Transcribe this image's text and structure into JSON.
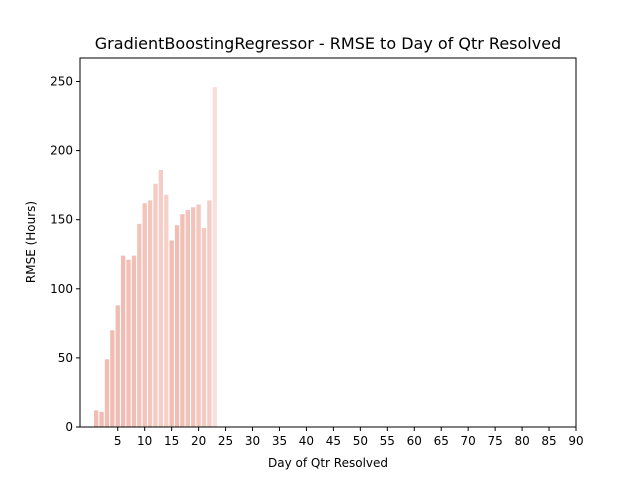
{
  "chart_data": {
    "type": "bar",
    "title": "GradientBoostingRegressor - RMSE to Day of Qtr Resolved",
    "xlabel": "Day of Qtr Resolved",
    "ylabel": "RMSE (Hours)",
    "xlim": [
      -2,
      90
    ],
    "ylim": [
      0,
      267
    ],
    "xticks": [
      5,
      10,
      15,
      20,
      25,
      30,
      35,
      40,
      45,
      50,
      55,
      60,
      65,
      70,
      75,
      80,
      85,
      90
    ],
    "yticks": [
      0,
      50,
      100,
      150,
      200,
      250
    ],
    "grid": false,
    "bar_color": "#f0b8ae",
    "x": [
      1,
      2,
      3,
      4,
      5,
      6,
      7,
      8,
      9,
      10,
      11,
      12,
      13,
      14,
      15,
      16,
      17,
      18,
      19,
      20,
      21,
      22,
      23
    ],
    "values": [
      12,
      11,
      49,
      70,
      88,
      124,
      121,
      124,
      147,
      162,
      164,
      176,
      186,
      168,
      135,
      146,
      154,
      157,
      159,
      161,
      144,
      164,
      246
    ],
    "bar_opacity": [
      0.95,
      0.95,
      0.95,
      0.95,
      0.95,
      0.95,
      0.9,
      0.9,
      0.85,
      0.85,
      0.8,
      0.75,
      0.7,
      0.65,
      0.95,
      0.95,
      0.9,
      0.85,
      0.85,
      0.8,
      0.75,
      0.7,
      0.45
    ]
  }
}
